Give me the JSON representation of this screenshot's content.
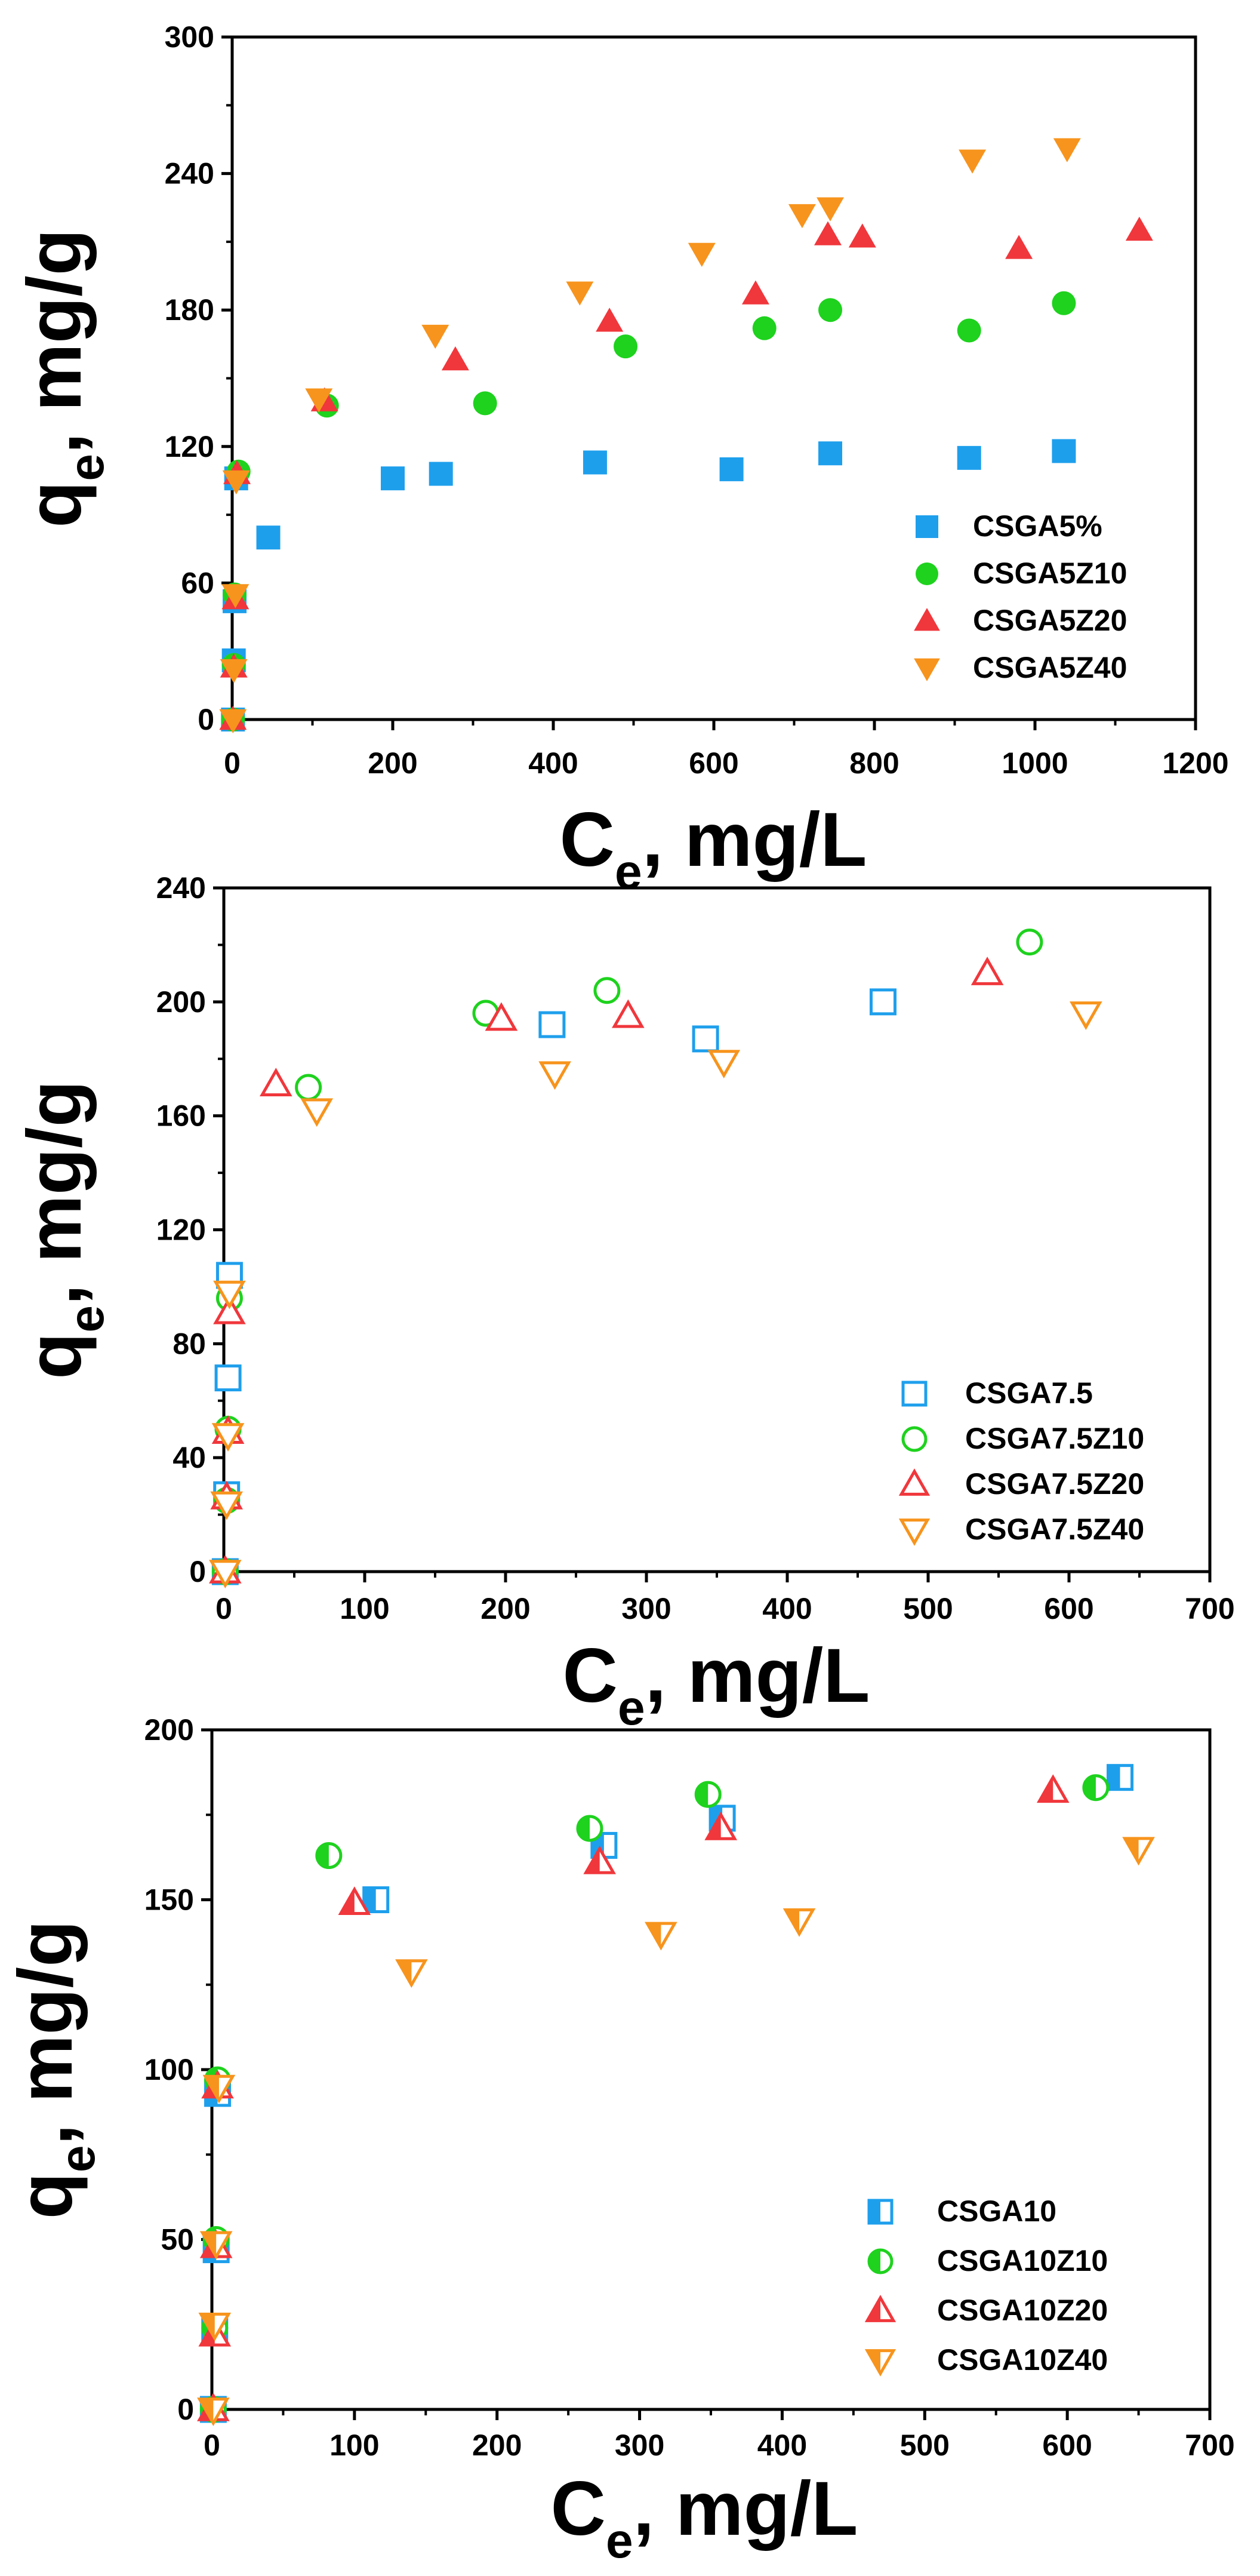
{
  "colors": {
    "blue": "#1e9fec",
    "green": "#1ed21e",
    "red": "#f0373c",
    "orange": "#f7941d",
    "axis": "#000000"
  },
  "chart_data": [
    {
      "type": "scatter",
      "title": "",
      "xlabel": "C",
      "xlabel_sub": "e",
      "xlabel_rest": ", mg/L",
      "ylabel": "q",
      "ylabel_sub": "e",
      "ylabel_rest": ", mg/g",
      "xlim": [
        0,
        1200
      ],
      "ylim": [
        0,
        300
      ],
      "xticks": [
        0,
        200,
        400,
        600,
        800,
        1000,
        1200
      ],
      "yticks": [
        0,
        60,
        120,
        180,
        240,
        300
      ],
      "legend_position": "bottom-right",
      "series": [
        {
          "name": "CSGA5%",
          "marker": "square",
          "filled": true,
          "color": "#1e9fec",
          "x": [
            1,
            2,
            3,
            5,
            45,
            200,
            260,
            452,
            622,
            745,
            918,
            1036
          ],
          "y": [
            0,
            26,
            52,
            106,
            80,
            106,
            108,
            113,
            110,
            117,
            115,
            118
          ]
        },
        {
          "name": "CSGA5Z10",
          "marker": "circle",
          "filled": true,
          "color": "#1ed21e",
          "x": [
            1,
            2,
            3,
            8,
            118,
            315,
            490,
            663,
            745,
            918,
            1036
          ],
          "y": [
            0,
            24,
            55,
            109,
            138,
            139,
            164,
            172,
            180,
            171,
            183
          ]
        },
        {
          "name": "CSGA5Z20",
          "marker": "triangle-up",
          "filled": true,
          "color": "#f0373c",
          "x": [
            1,
            2,
            4,
            6,
            115,
            278,
            470,
            652,
            742,
            785,
            980,
            1130
          ],
          "y": [
            0,
            23,
            53,
            108,
            140,
            158,
            175,
            187,
            213,
            212,
            207,
            215
          ]
        },
        {
          "name": "CSGA5Z40",
          "marker": "triangle-down",
          "filled": true,
          "color": "#f7941d",
          "x": [
            1,
            2,
            4,
            5,
            108,
            253,
            433,
            585,
            710,
            745,
            922,
            1040
          ],
          "y": [
            0,
            22,
            55,
            105,
            141,
            169,
            188,
            205,
            222,
            225,
            246,
            251
          ]
        }
      ]
    },
    {
      "type": "scatter",
      "title": "",
      "xlabel": "C",
      "xlabel_sub": "e",
      "xlabel_rest": ", mg/L",
      "ylabel": "q",
      "ylabel_sub": "e",
      "ylabel_rest": ", mg/g",
      "xlim": [
        0,
        700
      ],
      "ylim": [
        0,
        240
      ],
      "xticks": [
        0,
        100,
        200,
        300,
        400,
        500,
        600,
        700
      ],
      "yticks": [
        0,
        40,
        80,
        120,
        160,
        200,
        240
      ],
      "legend_position": "bottom-right",
      "series": [
        {
          "name": "CSGA7.5",
          "marker": "square",
          "filled": false,
          "color": "#1e9fec",
          "x": [
            1,
            2,
            3,
            4,
            233,
            342,
            468
          ],
          "y": [
            0,
            27,
            68,
            104,
            192,
            187,
            200
          ]
        },
        {
          "name": "CSGA7.5Z10",
          "marker": "circle",
          "filled": false,
          "color": "#1ed21e",
          "x": [
            1,
            2,
            3,
            4,
            60,
            186,
            272,
            572
          ],
          "y": [
            0,
            25,
            50,
            96,
            170,
            196,
            204,
            221
          ]
        },
        {
          "name": "CSGA7.5Z20",
          "marker": "triangle-up",
          "filled": false,
          "color": "#f0373c",
          "x": [
            1,
            2,
            3,
            4,
            37,
            197,
            287,
            542
          ],
          "y": [
            0,
            26,
            49,
            91,
            171,
            194,
            195,
            210
          ]
        },
        {
          "name": "CSGA7.5Z40",
          "marker": "triangle-down",
          "filled": false,
          "color": "#f7941d",
          "x": [
            1,
            2,
            3,
            4,
            66,
            235,
            355,
            612
          ],
          "y": [
            0,
            24,
            48,
            98,
            162,
            175,
            179,
            196
          ]
        }
      ]
    },
    {
      "type": "scatter",
      "title": "",
      "xlabel": "C",
      "xlabel_sub": "e",
      "xlabel_rest": ", mg/L",
      "ylabel": "q",
      "ylabel_sub": "e",
      "ylabel_rest": ", mg/g",
      "xlim": [
        0,
        700
      ],
      "ylim": [
        0,
        200
      ],
      "xticks": [
        0,
        100,
        200,
        300,
        400,
        500,
        600,
        700
      ],
      "yticks": [
        0,
        50,
        100,
        150,
        200
      ],
      "legend_position": "bottom-right",
      "series": [
        {
          "name": "CSGA10",
          "marker": "square",
          "filled": "half",
          "color": "#1e9fec",
          "x": [
            1,
            2,
            3,
            4,
            115,
            275,
            358,
            637
          ],
          "y": [
            0,
            23,
            47,
            93,
            150,
            166,
            174,
            186
          ]
        },
        {
          "name": "CSGA10Z10",
          "marker": "circle",
          "filled": "half",
          "color": "#1ed21e",
          "x": [
            1,
            2,
            3,
            4,
            82,
            265,
            348,
            620
          ],
          "y": [
            0,
            24,
            50,
            97,
            163,
            171,
            181,
            183
          ]
        },
        {
          "name": "CSGA10Z20",
          "marker": "triangle-up",
          "filled": "half",
          "color": "#f0373c",
          "x": [
            1,
            2,
            3,
            4,
            100,
            272,
            357,
            590
          ],
          "y": [
            0,
            22,
            48,
            95,
            149,
            161,
            171,
            182
          ]
        },
        {
          "name": "CSGA10Z40",
          "marker": "triangle-down",
          "filled": "half",
          "color": "#f7941d",
          "x": [
            1,
            2,
            3,
            5,
            140,
            315,
            412,
            650
          ],
          "y": [
            0,
            25,
            49,
            95,
            129,
            140,
            144,
            165
          ]
        }
      ]
    }
  ]
}
